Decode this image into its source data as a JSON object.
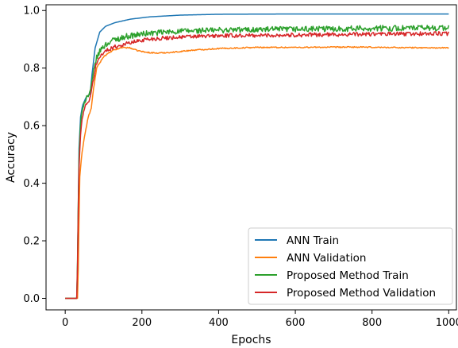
{
  "chart_data": {
    "type": "line",
    "title": "",
    "xlabel": "Epochs",
    "ylabel": "Accuracy",
    "xlim": [
      -50,
      1020
    ],
    "ylim": [
      -0.04,
      1.02
    ],
    "xticks": [
      0,
      200,
      400,
      600,
      800,
      1000
    ],
    "yticks": [
      0.0,
      0.2,
      0.4,
      0.6,
      0.8,
      1.0
    ],
    "xtick_labels": [
      "0",
      "200",
      "400",
      "600",
      "800",
      "1000"
    ],
    "ytick_labels": [
      "0.0",
      "0.2",
      "0.4",
      "0.6",
      "0.8",
      "1.0"
    ],
    "grid": false,
    "legend_position": "lower-right",
    "series": [
      {
        "name": "ANN Train",
        "color": "#1f77b4",
        "noise": 0.0,
        "points": [
          [
            0,
            0.0
          ],
          [
            28,
            0.0
          ],
          [
            31,
            0.0
          ],
          [
            33,
            0.2
          ],
          [
            36,
            0.52
          ],
          [
            40,
            0.63
          ],
          [
            45,
            0.67
          ],
          [
            55,
            0.7
          ],
          [
            65,
            0.71
          ],
          [
            70,
            0.78
          ],
          [
            78,
            0.87
          ],
          [
            90,
            0.925
          ],
          [
            105,
            0.945
          ],
          [
            130,
            0.958
          ],
          [
            170,
            0.97
          ],
          [
            220,
            0.978
          ],
          [
            300,
            0.984
          ],
          [
            400,
            0.987
          ],
          [
            600,
            0.988
          ],
          [
            800,
            0.988
          ],
          [
            1000,
            0.988
          ]
        ]
      },
      {
        "name": "ANN Validation",
        "color": "#ff7f0e",
        "noise": 0.002,
        "points": [
          [
            0,
            0.0
          ],
          [
            28,
            0.0
          ],
          [
            33,
            0.0
          ],
          [
            35,
            0.2
          ],
          [
            38,
            0.42
          ],
          [
            43,
            0.5
          ],
          [
            50,
            0.56
          ],
          [
            60,
            0.63
          ],
          [
            68,
            0.66
          ],
          [
            73,
            0.72
          ],
          [
            82,
            0.8
          ],
          [
            100,
            0.84
          ],
          [
            125,
            0.862
          ],
          [
            150,
            0.872
          ],
          [
            170,
            0.87
          ],
          [
            185,
            0.862
          ],
          [
            210,
            0.855
          ],
          [
            240,
            0.852
          ],
          [
            280,
            0.855
          ],
          [
            330,
            0.862
          ],
          [
            400,
            0.868
          ],
          [
            500,
            0.872
          ],
          [
            600,
            0.872
          ],
          [
            750,
            0.873
          ],
          [
            900,
            0.871
          ],
          [
            1000,
            0.87
          ]
        ]
      },
      {
        "name": "Proposed Method Train",
        "color": "#2ca02c",
        "noise": 0.01,
        "points": [
          [
            0,
            0.0
          ],
          [
            28,
            0.0
          ],
          [
            31,
            0.0
          ],
          [
            33,
            0.25
          ],
          [
            36,
            0.48
          ],
          [
            40,
            0.6
          ],
          [
            46,
            0.67
          ],
          [
            56,
            0.7
          ],
          [
            65,
            0.71
          ],
          [
            72,
            0.77
          ],
          [
            80,
            0.83
          ],
          [
            95,
            0.87
          ],
          [
            120,
            0.895
          ],
          [
            160,
            0.91
          ],
          [
            210,
            0.92
          ],
          [
            300,
            0.928
          ],
          [
            400,
            0.932
          ],
          [
            600,
            0.935
          ],
          [
            800,
            0.938
          ],
          [
            1000,
            0.94
          ]
        ]
      },
      {
        "name": "Proposed Method Validation",
        "color": "#d62728",
        "noise": 0.007,
        "points": [
          [
            0,
            0.0
          ],
          [
            28,
            0.0
          ],
          [
            31,
            0.0
          ],
          [
            33,
            0.22
          ],
          [
            36,
            0.45
          ],
          [
            40,
            0.57
          ],
          [
            46,
            0.64
          ],
          [
            56,
            0.68
          ],
          [
            65,
            0.69
          ],
          [
            72,
            0.75
          ],
          [
            80,
            0.81
          ],
          [
            95,
            0.85
          ],
          [
            120,
            0.87
          ],
          [
            160,
            0.885
          ],
          [
            210,
            0.9
          ],
          [
            300,
            0.908
          ],
          [
            400,
            0.912
          ],
          [
            600,
            0.915
          ],
          [
            800,
            0.918
          ],
          [
            1000,
            0.92
          ]
        ]
      }
    ]
  }
}
